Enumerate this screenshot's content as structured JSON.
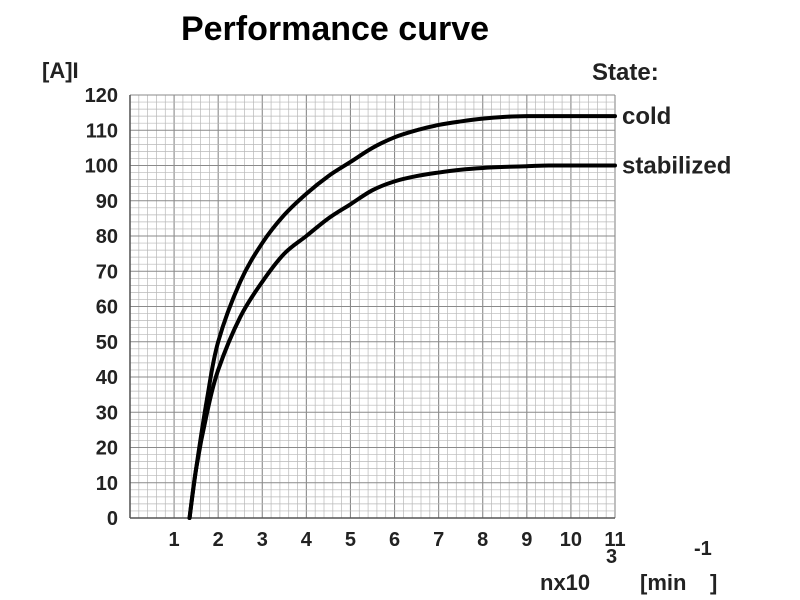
{
  "chart_data": {
    "type": "line",
    "title": "Performance curve",
    "ylabel": "[A]I",
    "xlabel": {
      "base": "nx10",
      "exponent": "3",
      "unit_open": "[min",
      "unit_exponent": "-1",
      "unit_close": "]"
    },
    "legend_title": "State:",
    "xlim": [
      0,
      11
    ],
    "ylim": [
      0,
      120
    ],
    "x_ticks": [
      "1",
      "2",
      "3",
      "4",
      "5",
      "6",
      "7",
      "8",
      "9",
      "10",
      "11"
    ],
    "y_ticks": [
      "0",
      "10",
      "20",
      "30",
      "40",
      "50",
      "60",
      "70",
      "80",
      "90",
      "100",
      "110",
      "120"
    ],
    "grid": true,
    "series": [
      {
        "name": "cold",
        "color": "#000000",
        "x": [
          1.35,
          1.5,
          1.75,
          2.0,
          2.5,
          3.0,
          3.5,
          4.0,
          4.5,
          5.0,
          5.5,
          6.0,
          6.5,
          7.0,
          7.5,
          8.0,
          8.5,
          9.0,
          9.5,
          10.0,
          10.5,
          11.0
        ],
        "y": [
          0,
          14,
          34,
          50,
          67,
          78,
          86,
          92,
          97,
          101,
          105,
          108,
          110,
          111.5,
          112.5,
          113.3,
          113.8,
          114,
          114,
          114,
          114,
          114
        ]
      },
      {
        "name": "stabilized",
        "color": "#000000",
        "x": [
          1.35,
          1.5,
          1.75,
          2.0,
          2.5,
          3.0,
          3.5,
          4.0,
          4.5,
          5.0,
          5.5,
          6.0,
          6.5,
          7.0,
          7.5,
          8.0,
          8.5,
          9.0,
          9.5,
          10.0,
          10.5,
          11.0
        ],
        "y": [
          0,
          14,
          30,
          42,
          57,
          67,
          75,
          80,
          85,
          89,
          93,
          95.5,
          97,
          98,
          98.8,
          99.3,
          99.6,
          99.8,
          100,
          100,
          100,
          100
        ]
      }
    ]
  }
}
